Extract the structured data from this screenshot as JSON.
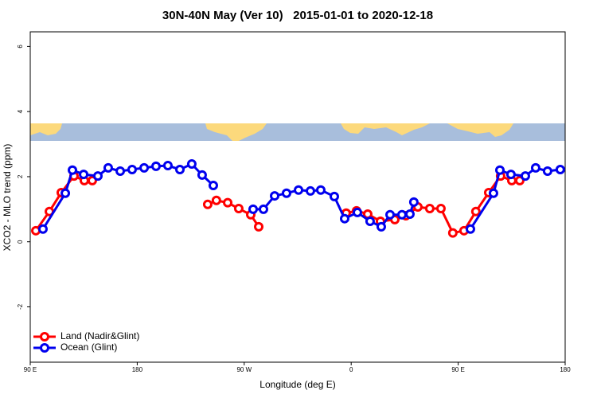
{
  "chart_data": {
    "type": "line",
    "title": "30N-40N May (Ver 10)   2015-01-01 to 2020-12-18",
    "x_label": "Longitude (deg E)",
    "y_label": "XCO2 - MLO trend (ppm)",
    "xlim": [
      90,
      540
    ],
    "ylim": [
      -3.7,
      6.45
    ],
    "xticks": [
      {
        "value": 90,
        "label": "90 E"
      },
      180,
      {
        "value": 270,
        "label": "90 W"
      },
      {
        "value": 360,
        "label": "0"
      },
      {
        "value": 450,
        "label": "90 E"
      },
      {
        "value": 540,
        "label": "180"
      }
    ],
    "yticks": [
      -2,
      0,
      2,
      4,
      6
    ],
    "legend": "bottom-left",
    "series": [
      {
        "name": "Land (Nadir&Glint)",
        "color": "#ff0000",
        "x": [
          94.7,
          106.1,
          116.1,
          126.8,
          135.5,
          142.2,
          null,
          239.3,
          246.6,
          256.1,
          265.4,
          275.5,
          282.2,
          null,
          355.8,
          364.5,
          373.9,
          384.6,
          396.7,
          406.0,
          416.1,
          426.1,
          435.5,
          445.5,
          454.9,
          464.9,
          475.7,
          485.7,
          495.1,
          501.8
        ],
        "values": [
          0.34,
          0.93,
          1.51,
          2.02,
          1.88,
          1.88,
          null,
          1.15,
          1.27,
          1.2,
          1.02,
          0.83,
          0.46,
          null,
          0.88,
          0.95,
          0.85,
          0.63,
          0.68,
          0.8,
          1.07,
          1.02,
          1.02,
          0.27,
          0.34,
          0.93,
          1.51,
          2.02,
          1.88,
          1.88
        ]
      },
      {
        "name": "Ocean (Glint)",
        "color": "#0000ee",
        "x": [
          100.7,
          119.5,
          125.5,
          134.9,
          146.9,
          155.6,
          165.7,
          175.7,
          185.8,
          195.8,
          205.8,
          215.9,
          225.9,
          234.6,
          244.0,
          null,
          277.5,
          286.2,
          295.6,
          305.6,
          315.7,
          325.7,
          334.4,
          345.8,
          354.5,
          365.2,
          375.9,
          385.3,
          392.7,
          402.7,
          409.4,
          412.7,
          null,
          460.3,
          479.7,
          485.1,
          494.4,
          506.5,
          515.2,
          525.2,
          535.9
        ],
        "values": [
          0.39,
          1.49,
          2.2,
          2.07,
          2.02,
          2.27,
          2.17,
          2.22,
          2.27,
          2.32,
          2.34,
          2.22,
          2.39,
          2.05,
          1.73,
          null,
          1.0,
          1.0,
          1.41,
          1.49,
          1.59,
          1.56,
          1.59,
          1.39,
          0.71,
          0.9,
          0.63,
          0.46,
          0.83,
          0.83,
          0.85,
          1.22,
          null,
          0.39,
          1.49,
          2.2,
          2.07,
          2.02,
          2.27,
          2.17,
          2.22
        ]
      }
    ]
  }
}
